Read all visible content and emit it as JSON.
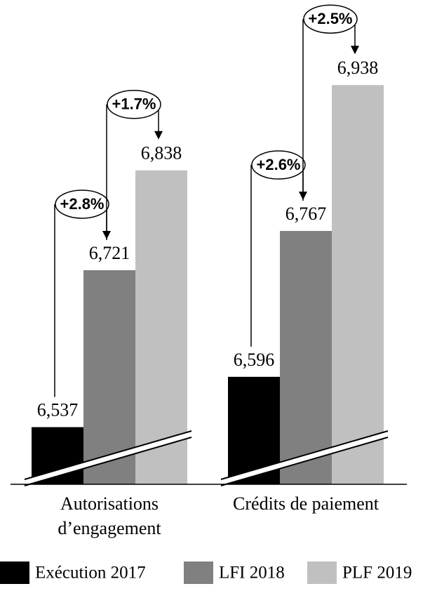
{
  "chart_data": {
    "type": "bar",
    "categories": [
      "Autorisations d’engagement",
      "Crédits de paiement"
    ],
    "series": [
      {
        "name": "Exécution 2017",
        "color": "#000000",
        "values": [
          6537,
          6596
        ],
        "value_labels": [
          "6,537",
          "6,596"
        ]
      },
      {
        "name": "LFI 2018",
        "color": "#808080",
        "values": [
          6721,
          6767
        ],
        "value_labels": [
          "6,721",
          "6,767"
        ]
      },
      {
        "name": "PLF 2019",
        "color": "#c0c0c0",
        "values": [
          6838,
          6938
        ],
        "value_labels": [
          "6,838",
          "6,938"
        ]
      }
    ],
    "annotations": [
      [
        "+2.8%",
        "+1.7%"
      ],
      [
        "+2.6%",
        "+2.5%"
      ]
    ],
    "ylim": [
      6470,
      6990
    ]
  }
}
